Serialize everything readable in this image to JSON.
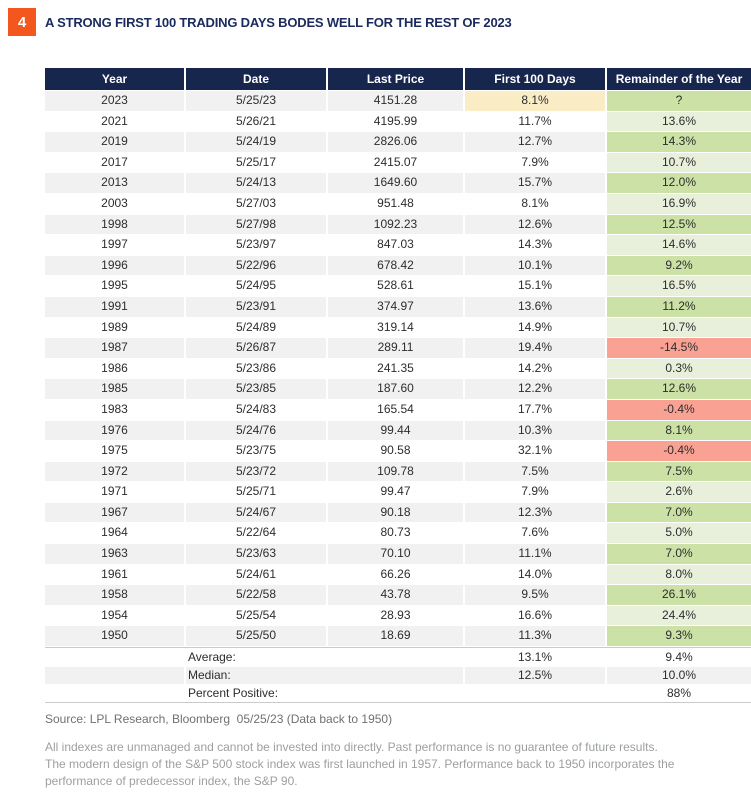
{
  "header": {
    "badge_number": "4",
    "title": "A STRONG FIRST 100 TRADING DAYS BODES WELL FOR THE REST OF 2023"
  },
  "colors": {
    "badge_orange": "#F4571E",
    "title_navy": "#1A2A5C",
    "header_navy": "#16264D",
    "row_stripe": "#F1F1F2",
    "row_white": "#FFFFFF",
    "highlight_yellow": "#FAEDC6",
    "positive_green_dark": "#CBE1A5",
    "positive_green_light": "#E8F0DB",
    "negative_red": "#F9A294",
    "separator_gray": "#C8CACC",
    "body_text": "#2D2D2D",
    "source_gray": "#6E7073",
    "disclaimer_gray": "#9C9FA1"
  },
  "chart_data": {
    "type": "table",
    "title": "A STRONG FIRST 100 TRADING DAYS BODES WELL FOR THE REST OF 2023",
    "columns": [
      "Year",
      "Date",
      "Last Price",
      "First 100 Days",
      "Remainder of the Year"
    ],
    "rows": [
      [
        "2023",
        "5/25/23",
        "4151.28",
        "8.1%",
        "?"
      ],
      [
        "2021",
        "5/26/21",
        "4195.99",
        "11.7%",
        "13.6%"
      ],
      [
        "2019",
        "5/24/19",
        "2826.06",
        "12.7%",
        "14.3%"
      ],
      [
        "2017",
        "5/25/17",
        "2415.07",
        "7.9%",
        "10.7%"
      ],
      [
        "2013",
        "5/24/13",
        "1649.60",
        "15.7%",
        "12.0%"
      ],
      [
        "2003",
        "5/27/03",
        "951.48",
        "8.1%",
        "16.9%"
      ],
      [
        "1998",
        "5/27/98",
        "1092.23",
        "12.6%",
        "12.5%"
      ],
      [
        "1997",
        "5/23/97",
        "847.03",
        "14.3%",
        "14.6%"
      ],
      [
        "1996",
        "5/22/96",
        "678.42",
        "10.1%",
        "9.2%"
      ],
      [
        "1995",
        "5/24/95",
        "528.61",
        "15.1%",
        "16.5%"
      ],
      [
        "1991",
        "5/23/91",
        "374.97",
        "13.6%",
        "11.2%"
      ],
      [
        "1989",
        "5/24/89",
        "319.14",
        "14.9%",
        "10.7%"
      ],
      [
        "1987",
        "5/26/87",
        "289.11",
        "19.4%",
        "-14.5%"
      ],
      [
        "1986",
        "5/23/86",
        "241.35",
        "14.2%",
        "0.3%"
      ],
      [
        "1985",
        "5/23/85",
        "187.60",
        "12.2%",
        "12.6%"
      ],
      [
        "1983",
        "5/24/83",
        "165.54",
        "17.7%",
        "-0.4%"
      ],
      [
        "1976",
        "5/24/76",
        "99.44",
        "10.3%",
        "8.1%"
      ],
      [
        "1975",
        "5/23/75",
        "90.58",
        "32.1%",
        "-0.4%"
      ],
      [
        "1972",
        "5/23/72",
        "109.78",
        "7.5%",
        "7.5%"
      ],
      [
        "1971",
        "5/25/71",
        "99.47",
        "7.9%",
        "2.6%"
      ],
      [
        "1967",
        "5/24/67",
        "90.18",
        "12.3%",
        "7.0%"
      ],
      [
        "1964",
        "5/22/64",
        "80.73",
        "7.6%",
        "5.0%"
      ],
      [
        "1963",
        "5/23/63",
        "70.10",
        "11.1%",
        "7.0%"
      ],
      [
        "1961",
        "5/24/61",
        "66.26",
        "14.0%",
        "8.0%"
      ],
      [
        "1958",
        "5/22/58",
        "43.78",
        "9.5%",
        "26.1%"
      ],
      [
        "1954",
        "5/25/54",
        "28.93",
        "16.6%",
        "24.4%"
      ],
      [
        "1950",
        "5/25/50",
        "18.69",
        "11.3%",
        "9.3%"
      ]
    ],
    "summary_rows": [
      {
        "label": "Average:",
        "first_100_days": "13.1%",
        "remainder": "9.4%"
      },
      {
        "label": "Median:",
        "first_100_days": "12.5%",
        "remainder": "10.0%"
      },
      {
        "label": "Percent Positive:",
        "first_100_days": "",
        "remainder": "88%"
      }
    ],
    "highlight": {
      "row_year": "2023",
      "remainder_unknown": "?"
    },
    "legend_note": "green = positive remainder, red = negative remainder, yellow = current year first 100 days"
  },
  "footer": {
    "source": "Source: LPL Research, Bloomberg  05/25/23 (Data back to 1950)",
    "disclaimer_lines": [
      "All indexes are unmanaged and cannot be invested into directly. Past performance is no guarantee of future results.",
      "The modern design of the S&P 500 stock index was first launched in 1957. Performance back to 1950 incorporates the",
      "performance of predecessor index, the S&P 90."
    ]
  }
}
